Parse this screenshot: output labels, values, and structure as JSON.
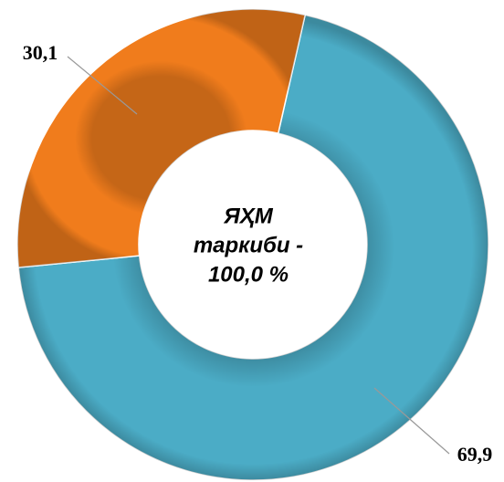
{
  "chart_data": {
    "type": "donut",
    "categories": [
      null,
      null
    ],
    "values": [
      69.9,
      30.1
    ],
    "value_labels": [
      "69,9",
      "30,1"
    ],
    "colors": [
      "#4bacc6",
      "#f07c1c"
    ],
    "center_label": [
      "ЯҲМ",
      "таркиби -",
      "100,0 %"
    ]
  }
}
